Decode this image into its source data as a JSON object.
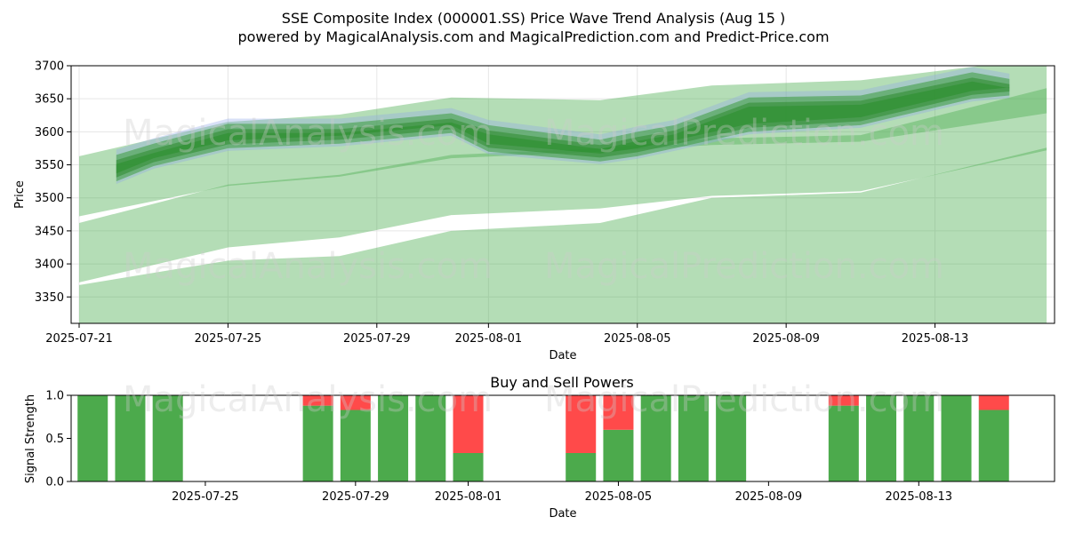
{
  "title_line1": "SSE Composite Index (000001.SS) Price Wave Trend Analysis (Aug 15 )",
  "title_line2": "powered by MagicalAnalysis.com and MagicalPrediction.com and Predict-Price.com",
  "watermarks": [
    "MagicalAnalysis.com",
    "MagicalPrediction.com"
  ],
  "chart_data": [
    {
      "type": "area",
      "xlabel": "Date",
      "ylabel": "Price",
      "ylim": [
        3310,
        3700
      ],
      "grid": true,
      "x_ticks": [
        "2025-07-21",
        "2025-07-25",
        "2025-07-29",
        "2025-08-01",
        "2025-08-05",
        "2025-08-09",
        "2025-08-13"
      ],
      "y_ticks": [
        3350,
        3400,
        3450,
        3500,
        3550,
        3600,
        3650,
        3700
      ],
      "bands": [
        {
          "dates": [
            "2025-07-21",
            "2025-07-25",
            "2025-07-28",
            "2025-07-31",
            "2025-08-04",
            "2025-08-07",
            "2025-08-11",
            "2025-08-16"
          ],
          "upper": [
            3563,
            3615,
            3626,
            3652,
            3648,
            3670,
            3678,
            3712
          ],
          "lower": [
            3472,
            3518,
            3532,
            3560,
            3570,
            3580,
            3585,
            3628
          ]
        },
        {
          "dates": [
            "2025-07-21",
            "2025-07-25",
            "2025-07-28",
            "2025-07-31",
            "2025-08-04",
            "2025-08-07",
            "2025-08-11",
            "2025-08-16"
          ],
          "upper": [
            3462,
            3520,
            3535,
            3565,
            3575,
            3590,
            3595,
            3666
          ],
          "lower": [
            3372,
            3425,
            3440,
            3474,
            3484,
            3503,
            3510,
            3572
          ]
        },
        {
          "dates": [
            "2025-07-21",
            "2025-07-25",
            "2025-07-28",
            "2025-07-31",
            "2025-08-04",
            "2025-08-07",
            "2025-08-11",
            "2025-08-16"
          ],
          "upper": [
            3368,
            3405,
            3412,
            3450,
            3462,
            3500,
            3508,
            3576
          ]
        },
        {
          "dates": [
            "2025-07-22",
            "2025-07-23",
            "2025-07-25",
            "2025-07-28",
            "2025-07-31",
            "2025-08-01",
            "2025-08-04",
            "2025-08-05",
            "2025-08-06",
            "2025-08-08",
            "2025-08-11",
            "2025-08-14",
            "2025-08-15"
          ],
          "upper": [
            3565,
            3582,
            3612,
            3612,
            3628,
            3610,
            3588,
            3600,
            3610,
            3652,
            3655,
            3690,
            3680
          ],
          "lower": [
            3525,
            3548,
            3575,
            3582,
            3598,
            3570,
            3555,
            3563,
            3575,
            3600,
            3610,
            3650,
            3655
          ]
        }
      ]
    },
    {
      "type": "bar",
      "title": "Buy and Sell Powers",
      "xlabel": "Date",
      "ylabel": "Signal Strength",
      "ylim": [
        0,
        1
      ],
      "y_ticks": [
        0.0,
        0.5,
        1.0
      ],
      "x_ticks": [
        "2025-07-25",
        "2025-07-29",
        "2025-08-01",
        "2025-08-05",
        "2025-08-09",
        "2025-08-13"
      ],
      "categories": [
        "2025-07-22",
        "2025-07-23",
        "2025-07-24",
        "2025-07-28",
        "2025-07-29",
        "2025-07-30",
        "2025-07-31",
        "2025-08-01",
        "2025-08-04",
        "2025-08-05",
        "2025-08-06",
        "2025-08-07",
        "2025-08-08",
        "2025-08-11",
        "2025-08-12",
        "2025-08-13",
        "2025-08-14",
        "2025-08-15"
      ],
      "series": [
        {
          "name": "",
          "color": "#4caa4c",
          "values": [
            1.0,
            1.0,
            1.0,
            0.88,
            0.83,
            1.0,
            1.0,
            0.33,
            0.33,
            0.6,
            1.0,
            1.0,
            1.0,
            0.88,
            1.0,
            1.0,
            1.0,
            0.83
          ]
        },
        {
          "name": "",
          "color": "#ff4a4a",
          "values": [
            0.0,
            0.0,
            0.0,
            0.12,
            0.17,
            0.0,
            0.0,
            0.67,
            0.67,
            0.4,
            0.0,
            0.0,
            0.0,
            0.12,
            0.0,
            0.0,
            0.0,
            0.17
          ]
        }
      ]
    }
  ]
}
